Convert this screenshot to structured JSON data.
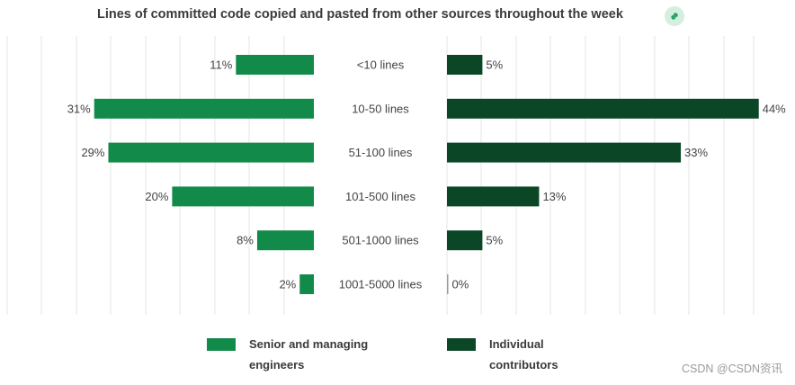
{
  "header": {
    "title": "Lines of committed code copied and pasted from other sources throughout the week",
    "link_icon": "link-icon"
  },
  "colors": {
    "senior": "#128a4a",
    "individual": "#0b4727",
    "grid": "#e6e6e6",
    "badge_bg": "#d4eedf",
    "badge_icon": "#1b9a57"
  },
  "chart_data": {
    "type": "bar",
    "title": "Lines of committed code copied and pasted from other sources throughout the week",
    "categories": [
      "<10 lines",
      "10-50 lines",
      "51-100 lines",
      "101-500 lines",
      "501-1000 lines",
      "1001-5000 lines"
    ],
    "series": [
      {
        "name": "Senior and managing engineers",
        "values": [
          11,
          31,
          29,
          20,
          8,
          2
        ],
        "labels": [
          "11%",
          "31%",
          "29%",
          "20%",
          "8%",
          "2%"
        ]
      },
      {
        "name": "Individual contributors",
        "values": [
          5,
          44,
          33,
          13,
          5,
          0
        ],
        "labels": [
          "5%",
          "44%",
          "33%",
          "13%",
          "5%",
          "0%"
        ]
      }
    ],
    "unit": "%",
    "xlim": [
      0,
      45
    ],
    "grid": true,
    "legend_position": "bottom"
  },
  "legend": {
    "senior_line1": "Senior and managing",
    "senior_line2": "engineers",
    "individual_line1": "Individual",
    "individual_line2": "contributors"
  },
  "watermark": "CSDN @CSDN资讯"
}
